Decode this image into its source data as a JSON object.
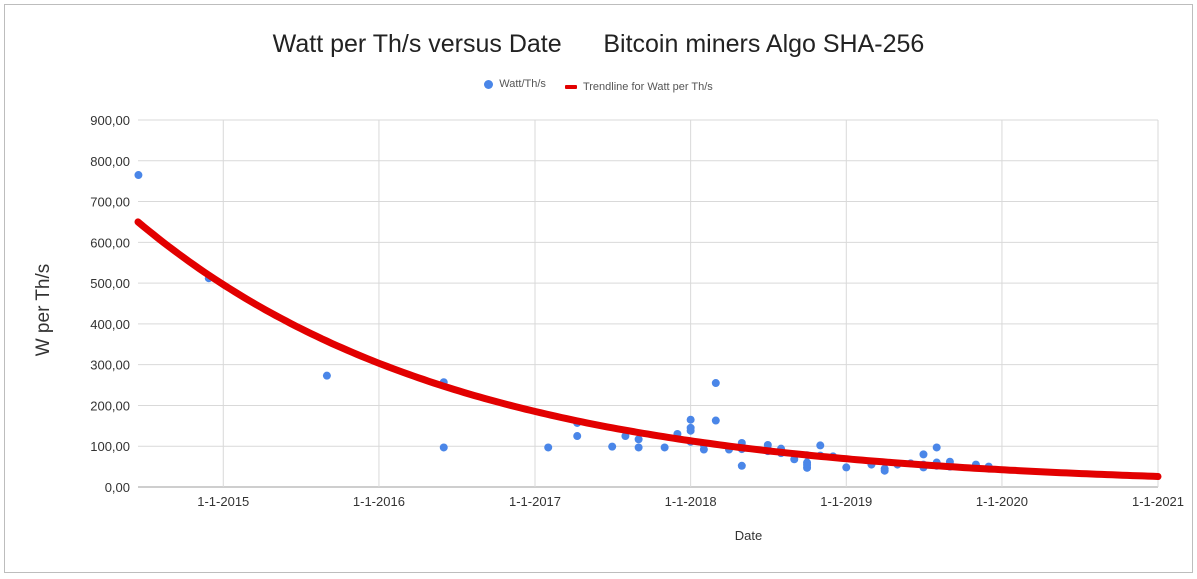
{
  "title": "Watt per Th/s versus Date      Bitcoin miners Algo SHA-256",
  "legend": {
    "series_label": "Watt/Th/s",
    "trend_label": "Trendline for Watt per Th/s"
  },
  "colors": {
    "points": "#4a86e8",
    "trendline": "#e20000",
    "grid": "#d9d9d9",
    "frame": "#bdbdbd"
  },
  "chart_data": {
    "type": "scatter",
    "title": "Watt per Th/s versus Date      Bitcoin miners Algo SHA-256",
    "xlabel": "Date",
    "ylabel": "W per Th/s",
    "xlim": [
      "2014-06-15",
      "2021-01-01"
    ],
    "ylim": [
      0,
      900
    ],
    "x_ticks": [
      "1-1-2015",
      "1-1-2016",
      "1-1-2017",
      "1-1-2018",
      "1-1-2019",
      "1-1-2020",
      "1-1-2021"
    ],
    "y_ticks": [
      "0,00",
      "100,00",
      "200,00",
      "300,00",
      "400,00",
      "500,00",
      "600,00",
      "700,00",
      "800,00",
      "900,00"
    ],
    "grid": true,
    "legend_position": "top",
    "series": [
      {
        "name": "Watt/Th/s",
        "x": [
          "2014-06-16",
          "2014-11-28",
          "2015-09-01",
          "2016-06-01",
          "2016-06-01",
          "2017-02-01",
          "2017-04-10",
          "2017-04-10",
          "2017-07-01",
          "2017-08-01",
          "2017-09-01",
          "2017-09-01",
          "2017-11-01",
          "2017-12-01",
          "2018-01-01",
          "2018-01-01",
          "2018-01-01",
          "2018-01-01",
          "2018-01-01",
          "2018-02-01",
          "2018-02-01",
          "2018-03-01",
          "2018-03-01",
          "2018-04-01",
          "2018-05-01",
          "2018-05-01",
          "2018-05-01",
          "2018-05-01",
          "2018-05-01",
          "2018-07-01",
          "2018-07-01",
          "2018-07-01",
          "2018-08-01",
          "2018-08-01",
          "2018-08-01",
          "2018-09-01",
          "2018-09-01",
          "2018-10-01",
          "2018-10-01",
          "2018-10-01",
          "2018-10-01",
          "2018-11-01",
          "2018-11-01",
          "2018-12-01",
          "2019-01-01",
          "2019-03-01",
          "2019-04-01",
          "2019-04-01",
          "2019-05-01",
          "2019-06-01",
          "2019-07-01",
          "2019-07-01",
          "2019-07-01",
          "2019-08-01",
          "2019-08-01",
          "2019-08-01",
          "2019-09-01",
          "2019-09-01",
          "2019-09-01",
          "2019-11-01",
          "2019-11-01",
          "2019-12-01",
          "2019-12-01"
        ],
        "y": [
          765,
          512,
          273,
          257,
          97,
          97,
          157,
          125,
          99,
          125,
          117,
          97,
          97,
          130,
          165,
          145,
          138,
          111,
          112,
          103,
          92,
          255,
          163,
          92,
          108,
          100,
          95,
          93,
          52,
          103,
          93,
          88,
          94,
          88,
          83,
          80,
          68,
          78,
          60,
          47,
          54,
          102,
          77,
          75,
          48,
          55,
          45,
          40,
          55,
          58,
          80,
          55,
          48,
          97,
          60,
          52,
          62,
          55,
          50,
          55,
          48,
          50,
          45
        ]
      },
      {
        "name": "Trendline for Watt per Th/s",
        "type": "line",
        "fit": "exponential",
        "x": [
          "2014-06-15",
          "2015-01-01",
          "2016-01-01",
          "2017-01-01",
          "2018-01-01",
          "2019-01-01",
          "2020-01-01",
          "2021-01-01"
        ],
        "y": [
          640,
          502,
          306,
          186,
          113,
          69,
          42,
          26
        ]
      }
    ]
  }
}
